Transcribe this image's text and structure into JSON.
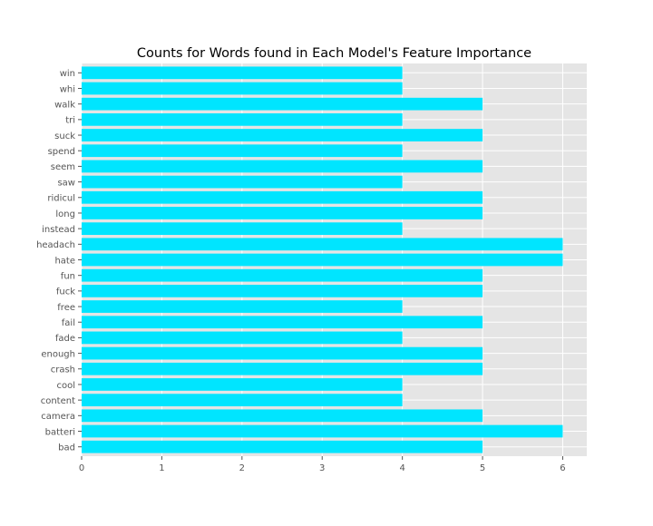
{
  "chart_data": {
    "type": "bar",
    "orientation": "horizontal",
    "title": "Counts for Words found in Each Model's Feature Importance",
    "xlabel": "",
    "ylabel": "",
    "categories": [
      "bad",
      "batteri",
      "camera",
      "content",
      "cool",
      "crash",
      "enough",
      "fade",
      "fail",
      "free",
      "fuck",
      "fun",
      "hate",
      "headach",
      "instead",
      "long",
      "ridicul",
      "saw",
      "seem",
      "spend",
      "suck",
      "tri",
      "walk",
      "whi",
      "win"
    ],
    "values": [
      5,
      6,
      5,
      4,
      4,
      5,
      5,
      4,
      5,
      4,
      5,
      5,
      6,
      6,
      4,
      5,
      5,
      4,
      5,
      4,
      5,
      4,
      5,
      4,
      4
    ],
    "xlim": [
      0,
      6.3
    ],
    "xticks": [
      0,
      1,
      2,
      3,
      4,
      5,
      6
    ],
    "grid": true,
    "bar_color": "#00e5ff",
    "background_color": "#e5e5e5",
    "grid_color": "#ffffff",
    "text_color": "#555555"
  }
}
